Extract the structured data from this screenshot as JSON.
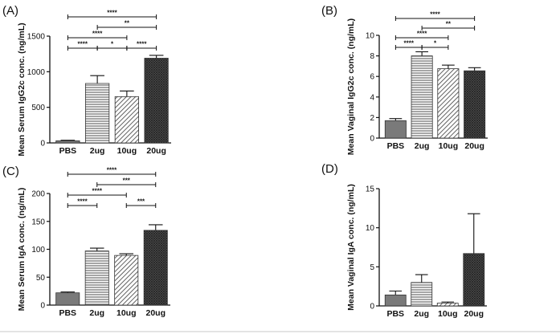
{
  "colors": {
    "axis": "#111111",
    "bar_fill": "#ffffff",
    "pbs_fill": "#7a7a7a",
    "hatch": "#3a3a3a",
    "background": "#ffffff"
  },
  "chart_data": [
    {
      "panel": "(A)",
      "type": "bar",
      "ylabel": "Mean Serum IgG2c conc. (ng/mL)",
      "categories": [
        "PBS",
        "2ug",
        "10ug",
        "20ug"
      ],
      "values": [
        30,
        835,
        650,
        1190
      ],
      "errors": [
        8,
        110,
        80,
        40
      ],
      "patterns": [
        "solid",
        "horizontal",
        "diagonal",
        "crosshatch"
      ],
      "ylim": [
        0,
        1500
      ],
      "yticks": [
        0,
        500,
        1000,
        1500
      ],
      "significance": [
        {
          "from": 0,
          "to": 1,
          "label": "****",
          "level": 0
        },
        {
          "from": 1,
          "to": 2,
          "label": "*",
          "level": 0
        },
        {
          "from": 2,
          "to": 3,
          "label": "****",
          "level": 0
        },
        {
          "from": 0,
          "to": 2,
          "label": "****",
          "level": 1
        },
        {
          "from": 1,
          "to": 3,
          "label": "**",
          "level": 2
        },
        {
          "from": 0,
          "to": 3,
          "label": "****",
          "level": 3
        }
      ]
    },
    {
      "panel": "(B)",
      "type": "bar",
      "ylabel": "Mean Vaginal IgG2c conc. (ng/mL)",
      "categories": [
        "PBS",
        "2ug",
        "10ug",
        "20ug"
      ],
      "values": [
        1.7,
        8.0,
        6.75,
        6.55
      ],
      "errors": [
        0.2,
        0.4,
        0.35,
        0.3
      ],
      "patterns": [
        "solid",
        "horizontal",
        "diagonal",
        "crosshatch"
      ],
      "ylim": [
        0,
        10
      ],
      "yticks": [
        0,
        2,
        4,
        6,
        8,
        10
      ],
      "significance": [
        {
          "from": 0,
          "to": 1,
          "label": "****",
          "level": 0
        },
        {
          "from": 1,
          "to": 2,
          "label": "*",
          "level": 0
        },
        {
          "from": 0,
          "to": 2,
          "label": "****",
          "level": 1
        },
        {
          "from": 1,
          "to": 3,
          "label": "**",
          "level": 2
        },
        {
          "from": 0,
          "to": 3,
          "label": "****",
          "level": 3
        }
      ]
    },
    {
      "panel": "(C)",
      "type": "bar",
      "ylabel": "Mean Serum IgA conc. (ng/mL)",
      "categories": [
        "PBS",
        "2ug",
        "10ug",
        "20ug"
      ],
      "values": [
        22,
        97,
        89,
        134
      ],
      "errors": [
        1.5,
        5,
        3,
        10
      ],
      "patterns": [
        "solid",
        "horizontal",
        "diagonal",
        "crosshatch"
      ],
      "ylim": [
        0,
        200
      ],
      "yticks": [
        0,
        50,
        100,
        150,
        200
      ],
      "significance": [
        {
          "from": 0,
          "to": 1,
          "label": "****",
          "level": 0
        },
        {
          "from": 2,
          "to": 3,
          "label": "***",
          "level": 0
        },
        {
          "from": 0,
          "to": 2,
          "label": "****",
          "level": 1
        },
        {
          "from": 1,
          "to": 3,
          "label": "***",
          "level": 2
        },
        {
          "from": 0,
          "to": 3,
          "label": "****",
          "level": 3
        }
      ]
    },
    {
      "panel": "(D)",
      "type": "bar",
      "ylabel": "Mean Vaginal IgA conc. (ng/mL)",
      "categories": [
        "PBS",
        "2ug",
        "10ug",
        "20ug"
      ],
      "values": [
        1.4,
        3.0,
        0.35,
        6.7
      ],
      "errors": [
        0.5,
        1.0,
        0.15,
        5.1
      ],
      "patterns": [
        "solid",
        "horizontal",
        "diagonal",
        "crosshatch"
      ],
      "ylim": [
        0,
        15
      ],
      "yticks": [
        0,
        5,
        10,
        15
      ],
      "significance": []
    }
  ]
}
